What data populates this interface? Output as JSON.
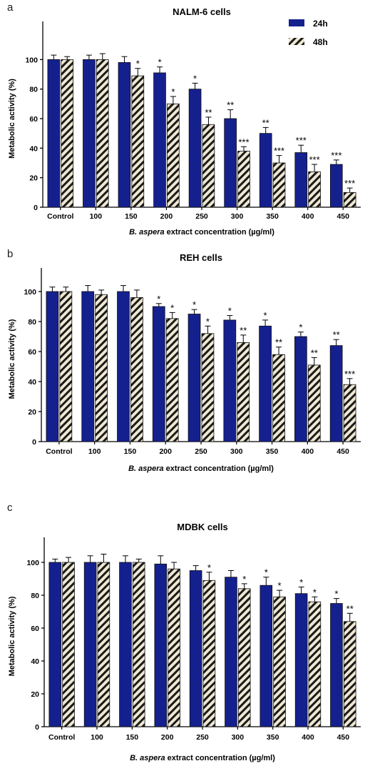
{
  "legend": {
    "series1": "24h",
    "series2": "48h"
  },
  "colors": {
    "bar24": "#15208f",
    "bar48_bg": "#efe8d2",
    "hatch": "#1a1a1a"
  },
  "chart_data": [
    {
      "type": "bar",
      "panel_label": "a",
      "title": "NALM-6 cells",
      "xlabel_italic": "B. aspera",
      "xlabel_rest": " extract concentration (µg/ml)",
      "ylabel": "Metabolic activity (%)",
      "ylim": [
        0,
        120
      ],
      "yticks": [
        0,
        20,
        40,
        60,
        80,
        100
      ],
      "categories": [
        "Control",
        "100",
        "150",
        "200",
        "250",
        "300",
        "350",
        "400",
        "450"
      ],
      "series": [
        {
          "name": "24h",
          "values": [
            100,
            100,
            98,
            91,
            80,
            60,
            50,
            37,
            29
          ],
          "errors": [
            3,
            3,
            4,
            4,
            4,
            6,
            4,
            5,
            3
          ],
          "sig": [
            "",
            "",
            "",
            "*",
            "*",
            "**",
            "**",
            "***",
            "***"
          ]
        },
        {
          "name": "48h",
          "values": [
            100,
            100,
            89,
            70,
            56,
            38,
            30,
            24,
            10
          ],
          "errors": [
            2,
            4,
            5,
            5,
            5,
            3,
            5,
            5,
            3
          ],
          "sig": [
            "",
            "",
            "*",
            "*",
            "**",
            "***",
            "***",
            "***",
            "***"
          ]
        }
      ],
      "legend_position": "top-right"
    },
    {
      "type": "bar",
      "panel_label": "b",
      "title": "REH cells",
      "xlabel_italic": "B. aspera",
      "xlabel_rest": " extract concentration (µg/ml)",
      "ylabel": "Metabolic activity (%)",
      "ylim": [
        0,
        110
      ],
      "yticks": [
        0,
        20,
        40,
        60,
        80,
        100
      ],
      "categories": [
        "Control",
        "100",
        "150",
        "200",
        "250",
        "300",
        "350",
        "400",
        "450"
      ],
      "series": [
        {
          "name": "24h",
          "values": [
            100,
            100,
            100,
            90,
            85,
            81,
            77,
            70,
            64
          ],
          "errors": [
            3,
            4,
            4,
            2,
            3,
            3,
            4,
            3,
            4
          ],
          "sig": [
            "",
            "",
            "",
            "*",
            "*",
            "*",
            "*",
            "*",
            "**"
          ]
        },
        {
          "name": "48h",
          "values": [
            100,
            98,
            96,
            82,
            72,
            66,
            58,
            51,
            38
          ],
          "errors": [
            3,
            3,
            5,
            4,
            5,
            5,
            5,
            5,
            4
          ],
          "sig": [
            "",
            "",
            "",
            "*",
            "*",
            "**",
            "**",
            "**",
            "***"
          ]
        }
      ]
    },
    {
      "type": "bar",
      "panel_label": "c",
      "title": "MDBK cells",
      "xlabel_italic": "B. aspera",
      "xlabel_rest": " extract concentration (µg/ml)",
      "ylabel": "Metabolic activity (%)",
      "ylim": [
        0,
        110
      ],
      "yticks": [
        0,
        20,
        40,
        60,
        80,
        100
      ],
      "categories": [
        "Control",
        "100",
        "150",
        "200",
        "250",
        "300",
        "350",
        "400",
        "450"
      ],
      "series": [
        {
          "name": "24h",
          "values": [
            100,
            100,
            100,
            99,
            95,
            91,
            86,
            81,
            75
          ],
          "errors": [
            2,
            4,
            4,
            5,
            3,
            4,
            5,
            4,
            3
          ],
          "sig": [
            "",
            "",
            "",
            "",
            "",
            "",
            "*",
            "*",
            "*"
          ]
        },
        {
          "name": "48h",
          "values": [
            100,
            100,
            100,
            96,
            89,
            84,
            79,
            76,
            64
          ],
          "errors": [
            3,
            5,
            2,
            4,
            5,
            3,
            4,
            3,
            5
          ],
          "sig": [
            "",
            "",
            "",
            "",
            "*",
            "*",
            "*",
            "*",
            "**"
          ]
        }
      ]
    }
  ]
}
